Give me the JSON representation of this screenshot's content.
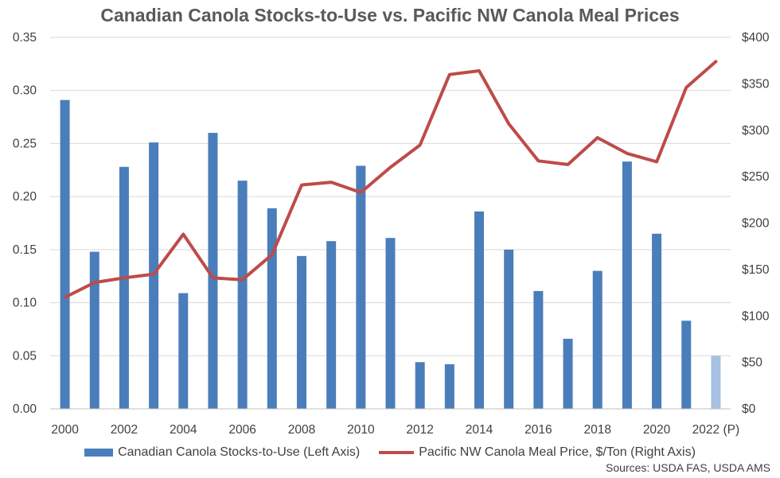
{
  "chart_data": {
    "type": "bar",
    "title": "Canadian Canola Stocks-to-Use vs. Pacific NW Canola Meal Prices",
    "categories": [
      "2000",
      "2001",
      "2002",
      "2003",
      "2004",
      "2005",
      "2006",
      "2007",
      "2008",
      "2009",
      "2010",
      "2011",
      "2012",
      "2013",
      "2014",
      "2015",
      "2016",
      "2017",
      "2018",
      "2019",
      "2020",
      "2021",
      "2022 (P)"
    ],
    "x_tick_labels": [
      "2000",
      "2002",
      "2004",
      "2006",
      "2008",
      "2010",
      "2012",
      "2014",
      "2016",
      "2018",
      "2020",
      "2022 (P)"
    ],
    "series": [
      {
        "name": "Canadian Canola Stocks-to-Use (Left Axis)",
        "type": "bar",
        "axis": "left",
        "color": "#4a7ebb",
        "projected_color": "#a6c1e2",
        "values": [
          0.291,
          0.148,
          0.228,
          0.251,
          0.109,
          0.26,
          0.215,
          0.189,
          0.144,
          0.158,
          0.229,
          0.161,
          0.044,
          0.042,
          0.186,
          0.15,
          0.111,
          0.066,
          0.13,
          0.233,
          0.165,
          0.083,
          0.05
        ]
      },
      {
        "name": "Pacific NW Canola Meal Price, $/Ton (Right Axis)",
        "type": "line",
        "axis": "right",
        "color": "#be4b48",
        "values": [
          120,
          136,
          141,
          145,
          188,
          141,
          139,
          166,
          241,
          244,
          233,
          260,
          284,
          360,
          364,
          307,
          267,
          263,
          292,
          275,
          266,
          346,
          374
        ]
      }
    ],
    "y_left": {
      "lim": [
        0,
        0.35
      ],
      "ticks": [
        "0.00",
        "0.05",
        "0.10",
        "0.15",
        "0.20",
        "0.25",
        "0.30",
        "0.35"
      ]
    },
    "y_right": {
      "lim": [
        0,
        400
      ],
      "ticks": [
        "$0",
        "$50",
        "$100",
        "$150",
        "$200",
        "$250",
        "$300",
        "$350",
        "$400"
      ]
    },
    "grid": true,
    "legend_position": "bottom",
    "source": "Sources: USDA FAS, USDA AMS"
  }
}
